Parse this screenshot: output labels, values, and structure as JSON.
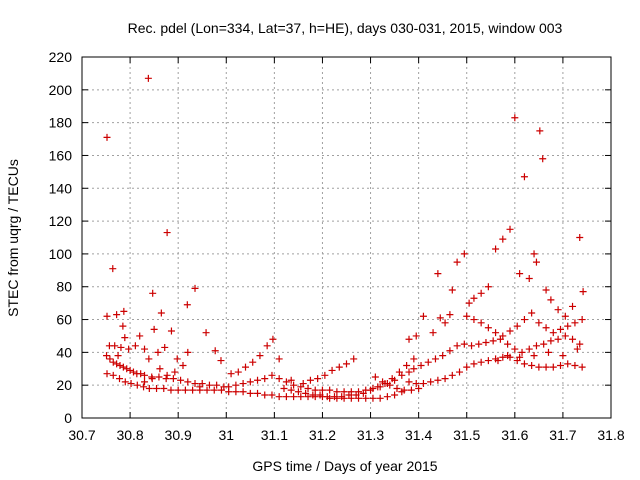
{
  "chart_data": {
    "type": "scatter",
    "title": "Rec. pdel (Lon=334, Lat=37, h=HE), days 030-031, 2015, window 003",
    "xlabel": "GPS time / Days of year 2015",
    "ylabel": "STEC from uqrg / TECUs",
    "xlim": [
      30.7,
      31.8
    ],
    "ylim": [
      0,
      220
    ],
    "xticks": [
      30.7,
      30.8,
      30.9,
      31,
      31.1,
      31.2,
      31.3,
      31.4,
      31.5,
      31.6,
      31.7,
      31.8
    ],
    "xtick_labels": [
      "30.7",
      "30.8",
      "30.9",
      "31",
      "31.1",
      "31.2",
      "31.3",
      "31.4",
      "31.5",
      "31.6",
      "31.7",
      "31.8"
    ],
    "yticks": [
      0,
      20,
      40,
      60,
      80,
      100,
      120,
      140,
      160,
      180,
      200,
      220
    ],
    "ytick_labels": [
      "0",
      "20",
      "40",
      "60",
      "80",
      "100",
      "120",
      "140",
      "160",
      "180",
      "200",
      "220"
    ],
    "grid": true,
    "marker": "+",
    "color": "#cc0000",
    "series": [
      {
        "points": [
          [
            30.752,
            171
          ],
          [
            30.764,
            91
          ],
          [
            30.838,
            207
          ],
          [
            30.877,
            113
          ],
          [
            30.935,
            79
          ],
          [
            30.919,
            69
          ],
          [
            30.847,
            76
          ],
          [
            30.752,
            62
          ],
          [
            30.772,
            63
          ],
          [
            30.787,
            65
          ],
          [
            30.785,
            56
          ],
          [
            30.865,
            64
          ],
          [
            30.85,
            54
          ],
          [
            30.958,
            52
          ],
          [
            30.757,
            44
          ],
          [
            30.768,
            44
          ],
          [
            30.775,
            38
          ],
          [
            30.781,
            43
          ],
          [
            30.789,
            49
          ],
          [
            30.797,
            42
          ],
          [
            30.811,
            44
          ],
          [
            30.82,
            50
          ],
          [
            30.83,
            42
          ],
          [
            30.839,
            36
          ],
          [
            30.858,
            40
          ],
          [
            30.872,
            43
          ],
          [
            30.886,
            53
          ],
          [
            30.898,
            36
          ],
          [
            30.92,
            40
          ],
          [
            30.977,
            41
          ],
          [
            30.989,
            35
          ],
          [
            30.751,
            38
          ],
          [
            30.758,
            36
          ],
          [
            30.765,
            34
          ],
          [
            30.772,
            33
          ],
          [
            30.779,
            32
          ],
          [
            30.786,
            31
          ],
          [
            30.793,
            30
          ],
          [
            30.8,
            29
          ],
          [
            30.807,
            28
          ],
          [
            30.814,
            27
          ],
          [
            30.822,
            27
          ],
          [
            30.83,
            26
          ],
          [
            30.845,
            25
          ],
          [
            30.86,
            25
          ],
          [
            30.875,
            24
          ],
          [
            30.89,
            24
          ],
          [
            30.905,
            23
          ],
          [
            30.92,
            22
          ],
          [
            30.935,
            21
          ],
          [
            30.95,
            21
          ],
          [
            30.965,
            20
          ],
          [
            30.98,
            20
          ],
          [
            30.995,
            19
          ],
          [
            30.752,
            27
          ],
          [
            30.765,
            26
          ],
          [
            30.778,
            24
          ],
          [
            30.79,
            22
          ],
          [
            30.802,
            21
          ],
          [
            30.815,
            20
          ],
          [
            30.828,
            19
          ],
          [
            30.84,
            18
          ],
          [
            30.855,
            18
          ],
          [
            30.87,
            18
          ],
          [
            30.885,
            17
          ],
          [
            30.9,
            17
          ],
          [
            30.915,
            17
          ],
          [
            30.93,
            17
          ],
          [
            30.945,
            17
          ],
          [
            30.96,
            17
          ],
          [
            30.975,
            17
          ],
          [
            30.99,
            17
          ],
          [
            30.83,
            22
          ],
          [
            30.846,
            24
          ],
          [
            30.862,
            30
          ],
          [
            30.877,
            26
          ],
          [
            30.893,
            28
          ],
          [
            30.91,
            32
          ],
          [
            30.945,
            19
          ],
          [
            31.01,
            27
          ],
          [
            31.025,
            28
          ],
          [
            31.04,
            31
          ],
          [
            31.055,
            34
          ],
          [
            31.07,
            38
          ],
          [
            31.085,
            44
          ],
          [
            31.097,
            48
          ],
          [
            31.11,
            36
          ],
          [
            31.135,
            23
          ],
          [
            31.16,
            21
          ],
          [
            31.175,
            23
          ],
          [
            31.19,
            24
          ],
          [
            31.205,
            26
          ],
          [
            31.22,
            29
          ],
          [
            31.235,
            31
          ],
          [
            31.25,
            33
          ],
          [
            31.265,
            36
          ],
          [
            31.005,
            16
          ],
          [
            31.02,
            16
          ],
          [
            31.035,
            16
          ],
          [
            31.05,
            15
          ],
          [
            31.065,
            15
          ],
          [
            31.08,
            14
          ],
          [
            31.095,
            14
          ],
          [
            31.11,
            13
          ],
          [
            31.125,
            13
          ],
          [
            31.14,
            13
          ],
          [
            31.155,
            13
          ],
          [
            31.17,
            13
          ],
          [
            31.185,
            13
          ],
          [
            31.2,
            13
          ],
          [
            31.215,
            12
          ],
          [
            31.23,
            12
          ],
          [
            31.245,
            12
          ],
          [
            31.26,
            12
          ],
          [
            31.275,
            12
          ],
          [
            31.29,
            12
          ],
          [
            31.305,
            12
          ],
          [
            31.32,
            12
          ],
          [
            31.335,
            13
          ],
          [
            31.35,
            14
          ],
          [
            31.365,
            16
          ],
          [
            31.005,
            19
          ],
          [
            31.02,
            20
          ],
          [
            31.035,
            21
          ],
          [
            31.05,
            22
          ],
          [
            31.065,
            23
          ],
          [
            31.08,
            24
          ],
          [
            31.095,
            26
          ],
          [
            31.11,
            24
          ],
          [
            31.125,
            22
          ],
          [
            31.14,
            20
          ],
          [
            31.155,
            19
          ],
          [
            31.17,
            18
          ],
          [
            31.185,
            17
          ],
          [
            31.2,
            17
          ],
          [
            31.215,
            17
          ],
          [
            31.23,
            16
          ],
          [
            31.245,
            16
          ],
          [
            31.26,
            16
          ],
          [
            31.275,
            16
          ],
          [
            31.29,
            17
          ],
          [
            31.305,
            18
          ],
          [
            31.32,
            19
          ],
          [
            31.335,
            21
          ],
          [
            31.35,
            23
          ],
          [
            31.365,
            26
          ],
          [
            31.38,
            28
          ],
          [
            31.12,
            18
          ],
          [
            31.135,
            17
          ],
          [
            31.15,
            16
          ],
          [
            31.165,
            15
          ],
          [
            31.18,
            14
          ],
          [
            31.195,
            14
          ],
          [
            31.21,
            13
          ],
          [
            31.225,
            13
          ],
          [
            31.24,
            13
          ],
          [
            31.255,
            14
          ],
          [
            31.27,
            14
          ],
          [
            31.285,
            15
          ],
          [
            31.3,
            17
          ],
          [
            31.315,
            19
          ],
          [
            31.33,
            21
          ],
          [
            31.345,
            24
          ],
          [
            31.36,
            28
          ],
          [
            31.375,
            32
          ],
          [
            31.39,
            36
          ],
          [
            31.31,
            25
          ],
          [
            31.325,
            22
          ],
          [
            31.34,
            20
          ],
          [
            31.355,
            18
          ],
          [
            31.37,
            17
          ],
          [
            31.385,
            17
          ],
          [
            31.4,
            18
          ],
          [
            31.38,
            48
          ],
          [
            31.395,
            50
          ],
          [
            31.41,
            62
          ],
          [
            31.43,
            52
          ],
          [
            31.445,
            61
          ],
          [
            31.455,
            58
          ],
          [
            31.465,
            63
          ],
          [
            31.38,
            22
          ],
          [
            31.395,
            21
          ],
          [
            31.41,
            21
          ],
          [
            31.425,
            22
          ],
          [
            31.44,
            23
          ],
          [
            31.455,
            24
          ],
          [
            31.47,
            26
          ],
          [
            31.485,
            28
          ],
          [
            31.5,
            31
          ],
          [
            31.515,
            33
          ],
          [
            31.53,
            34
          ],
          [
            31.545,
            35
          ],
          [
            31.56,
            36
          ],
          [
            31.575,
            37
          ],
          [
            31.59,
            37
          ],
          [
            31.605,
            35
          ],
          [
            31.62,
            33
          ],
          [
            31.635,
            32
          ],
          [
            31.65,
            31
          ],
          [
            31.665,
            31
          ],
          [
            31.68,
            31
          ],
          [
            31.695,
            32
          ],
          [
            31.71,
            33
          ],
          [
            31.725,
            32
          ],
          [
            31.74,
            31
          ],
          [
            31.39,
            30
          ],
          [
            31.405,
            32
          ],
          [
            31.42,
            34
          ],
          [
            31.435,
            36
          ],
          [
            31.45,
            38
          ],
          [
            31.465,
            41
          ],
          [
            31.48,
            44
          ],
          [
            31.495,
            45
          ],
          [
            31.51,
            44
          ],
          [
            31.525,
            45
          ],
          [
            31.54,
            46
          ],
          [
            31.555,
            47
          ],
          [
            31.57,
            48
          ],
          [
            31.585,
            45
          ],
          [
            31.6,
            42
          ],
          [
            31.615,
            40
          ],
          [
            31.63,
            42
          ],
          [
            31.645,
            44
          ],
          [
            31.66,
            45
          ],
          [
            31.675,
            47
          ],
          [
            31.69,
            48
          ],
          [
            31.705,
            50
          ],
          [
            31.72,
            48
          ],
          [
            31.735,
            45
          ],
          [
            31.44,
            88
          ],
          [
            31.47,
            78
          ],
          [
            31.48,
            95
          ],
          [
            31.495,
            100
          ],
          [
            31.505,
            70
          ],
          [
            31.515,
            73
          ],
          [
            31.53,
            76
          ],
          [
            31.545,
            80
          ],
          [
            31.56,
            103
          ],
          [
            31.575,
            109
          ],
          [
            31.59,
            115
          ],
          [
            31.6,
            183
          ],
          [
            31.61,
            88
          ],
          [
            31.62,
            147
          ],
          [
            31.63,
            85
          ],
          [
            31.64,
            100
          ],
          [
            31.645,
            95
          ],
          [
            31.652,
            175
          ],
          [
            31.658,
            158
          ],
          [
            31.665,
            78
          ],
          [
            31.675,
            72
          ],
          [
            31.69,
            66
          ],
          [
            31.705,
            62
          ],
          [
            31.72,
            68
          ],
          [
            31.735,
            110
          ],
          [
            31.742,
            77
          ],
          [
            31.5,
            62
          ],
          [
            31.515,
            60
          ],
          [
            31.53,
            58
          ],
          [
            31.545,
            55
          ],
          [
            31.56,
            52
          ],
          [
            31.575,
            50
          ],
          [
            31.59,
            53
          ],
          [
            31.605,
            56
          ],
          [
            31.62,
            60
          ],
          [
            31.635,
            64
          ],
          [
            31.65,
            58
          ],
          [
            31.665,
            55
          ],
          [
            31.68,
            52
          ],
          [
            31.695,
            54
          ],
          [
            31.71,
            56
          ],
          [
            31.725,
            58
          ],
          [
            31.74,
            60
          ],
          [
            31.565,
            35
          ],
          [
            31.585,
            38
          ],
          [
            31.61,
            37
          ],
          [
            31.64,
            38
          ],
          [
            31.67,
            40
          ],
          [
            31.7,
            38
          ],
          [
            31.73,
            42
          ]
        ]
      }
    ]
  }
}
